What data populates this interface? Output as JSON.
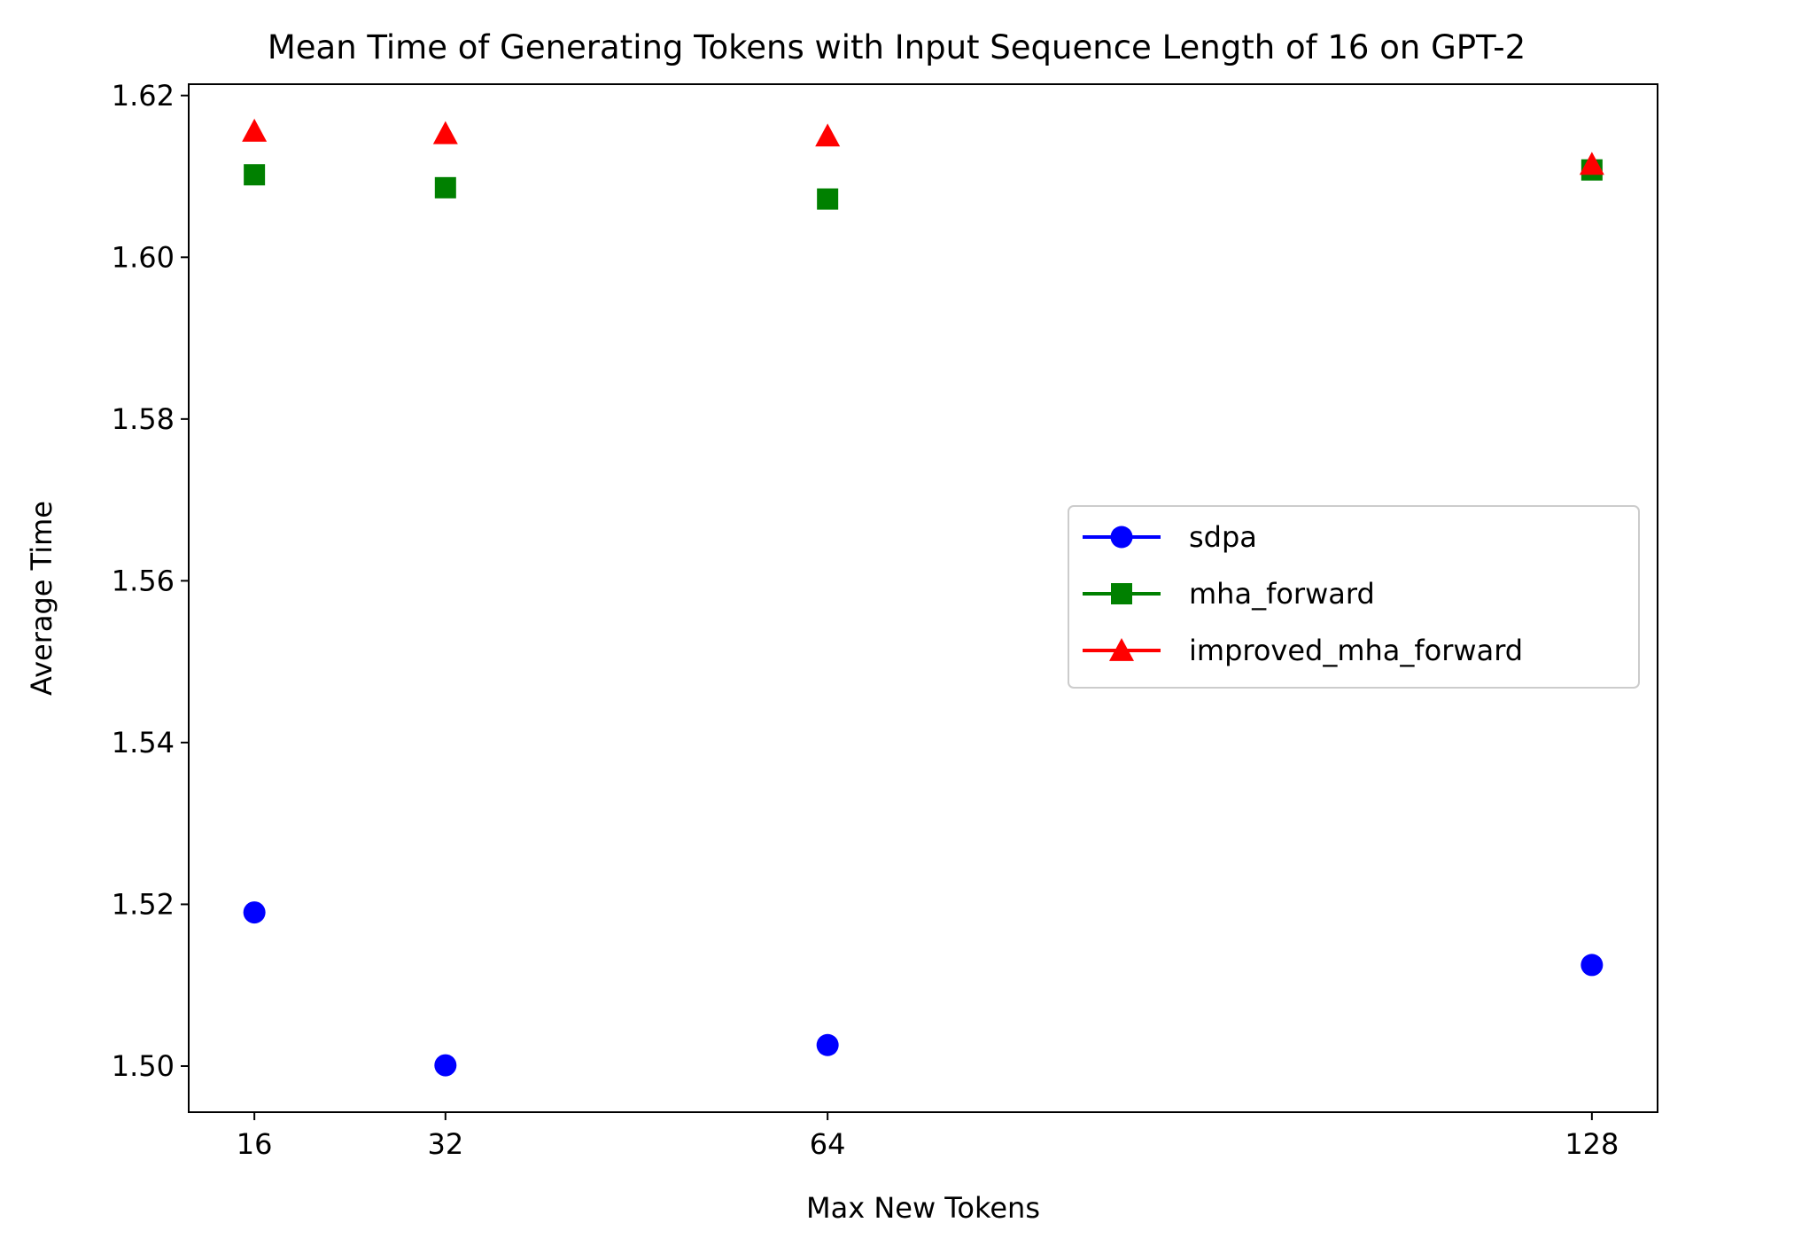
{
  "chart_data": {
    "type": "scatter",
    "title": "Mean Time of Generating Tokens with Input Sequence Length of 16 on GPT-2",
    "xlabel": "Max New Tokens",
    "ylabel": "Average Time",
    "x": [
      16,
      32,
      64,
      128
    ],
    "x_ticks": [
      "16",
      "32",
      "64",
      "128"
    ],
    "xlim": [
      10.5,
      133.5
    ],
    "ylim": [
      1.4943,
      1.6214
    ],
    "y_ticks": [
      "1.50",
      "1.52",
      "1.54",
      "1.56",
      "1.58",
      "1.60",
      "1.62"
    ],
    "grid": false,
    "legend_position": "center-right",
    "series": [
      {
        "name": "sdpa",
        "marker": "circle",
        "color": "#0000ff",
        "values": [
          1.519,
          1.5001,
          1.5026,
          1.5125
        ]
      },
      {
        "name": "mha_forward",
        "marker": "square",
        "color": "#008000",
        "values": [
          1.6102,
          1.6086,
          1.6072,
          1.6108
        ]
      },
      {
        "name": "improved_mha_forward",
        "marker": "triangle",
        "color": "#ff0000",
        "values": [
          1.6156,
          1.6153,
          1.615,
          1.6115
        ]
      }
    ]
  }
}
